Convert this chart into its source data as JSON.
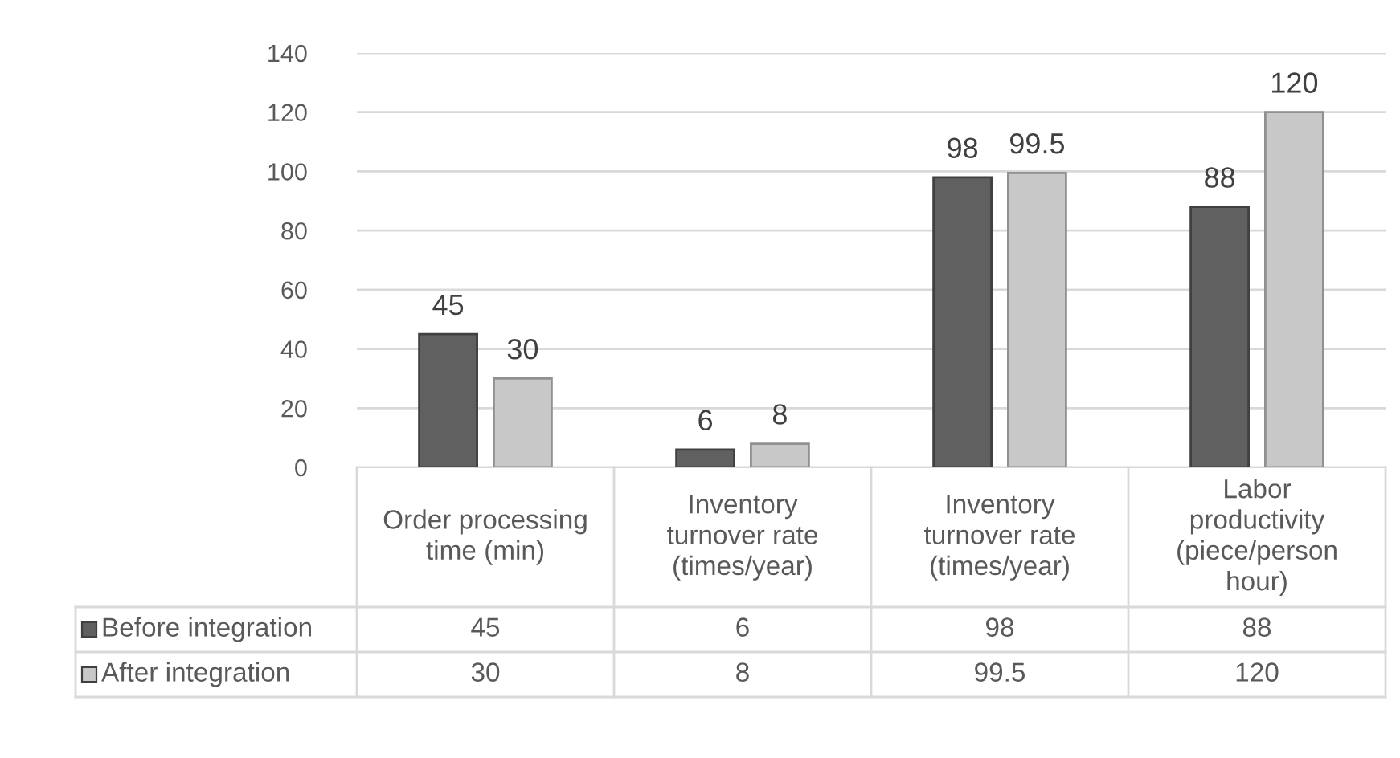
{
  "chart_data": {
    "type": "bar",
    "categories": [
      "Order processing\ntime (min)",
      "Inventory\nturnover rate\n(times/year)",
      "Inventory\nturnover rate\n(times/year)",
      "Labor\nproductivity\n(piece/person\nhour)"
    ],
    "series": [
      {
        "name": "Before integration",
        "color": "#606060",
        "values": [
          45,
          6,
          98,
          88
        ],
        "value_labels": [
          "45",
          "6",
          "98",
          "88"
        ]
      },
      {
        "name": "After integration",
        "color": "#c8c8c8",
        "values": [
          30,
          8,
          99.5,
          120
        ],
        "value_labels": [
          "30",
          "8",
          "99.5",
          "120"
        ]
      }
    ],
    "ylim": [
      0,
      140
    ],
    "yticks": [
      0,
      20,
      40,
      60,
      80,
      100,
      120,
      140
    ],
    "grid": "y",
    "legend": "bottom",
    "data_labels": true
  }
}
